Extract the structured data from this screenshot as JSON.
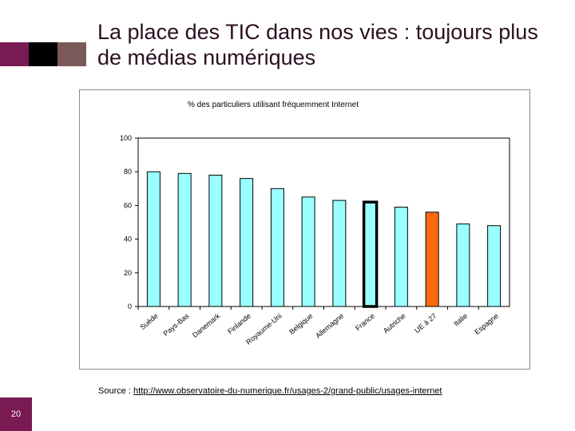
{
  "slide": {
    "title": "La place des TIC dans nos vies : toujours plus de médias numériques",
    "page_number": "20",
    "source_label": "Source",
    "source_separator": " : ",
    "source_url": "http://www.observatoire-du-numerique.fr/usages-2/grand-public/usages-internet"
  },
  "colors": {
    "deco_1": "#7a1a52",
    "deco_2": "#000000",
    "deco_3": "#7a5a58",
    "bar_fill": "#99ffff",
    "bar_stroke": "#000000",
    "highlight_france_stroke": "#000000",
    "highlight_ue": "#ff6a10",
    "plot_bg": "#ffffff",
    "page_badge": "#7a1a52"
  },
  "chart_data": {
    "type": "bar",
    "title": "% des particuliers utilisant fréquemment Internet",
    "xlabel": "",
    "ylabel": "",
    "ylim": [
      0,
      100
    ],
    "yticks": [
      0,
      20,
      40,
      60,
      80,
      100
    ],
    "categories": [
      "Suède",
      "Pays-Bas",
      "Danemark",
      "Finlande",
      "Royaume-Uni",
      "Belgique",
      "Allemagne",
      "France",
      "Autriche",
      "UE à 27",
      "Italie",
      "Espagne"
    ],
    "values": [
      80,
      79,
      78,
      76,
      70,
      65,
      63,
      62,
      59,
      56,
      49,
      48
    ],
    "highlighted": {
      "France": "thick-outline",
      "UE à 27": "orange-fill"
    },
    "grid": false,
    "legend": "none"
  }
}
